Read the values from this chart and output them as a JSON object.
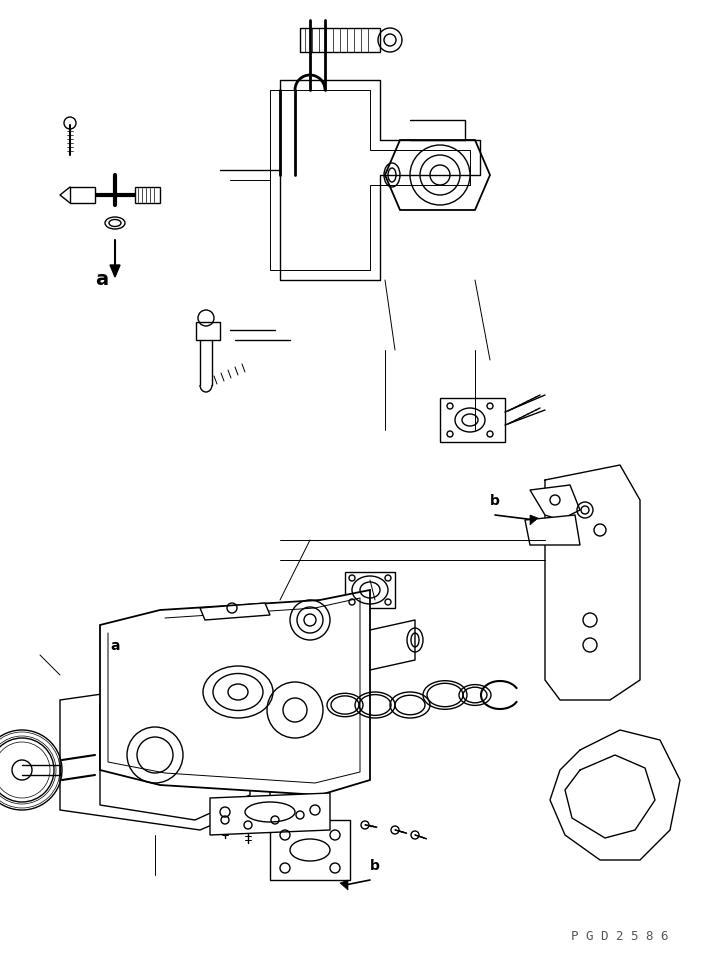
{
  "background_color": "#ffffff",
  "line_color": "#000000",
  "line_width": 1.0,
  "fig_width": 7.04,
  "fig_height": 9.55,
  "dpi": 100,
  "label_a1": "a",
  "label_a2": "a",
  "label_b1": "b",
  "label_b2": "b",
  "watermark": "P G D 2 5 8 6"
}
